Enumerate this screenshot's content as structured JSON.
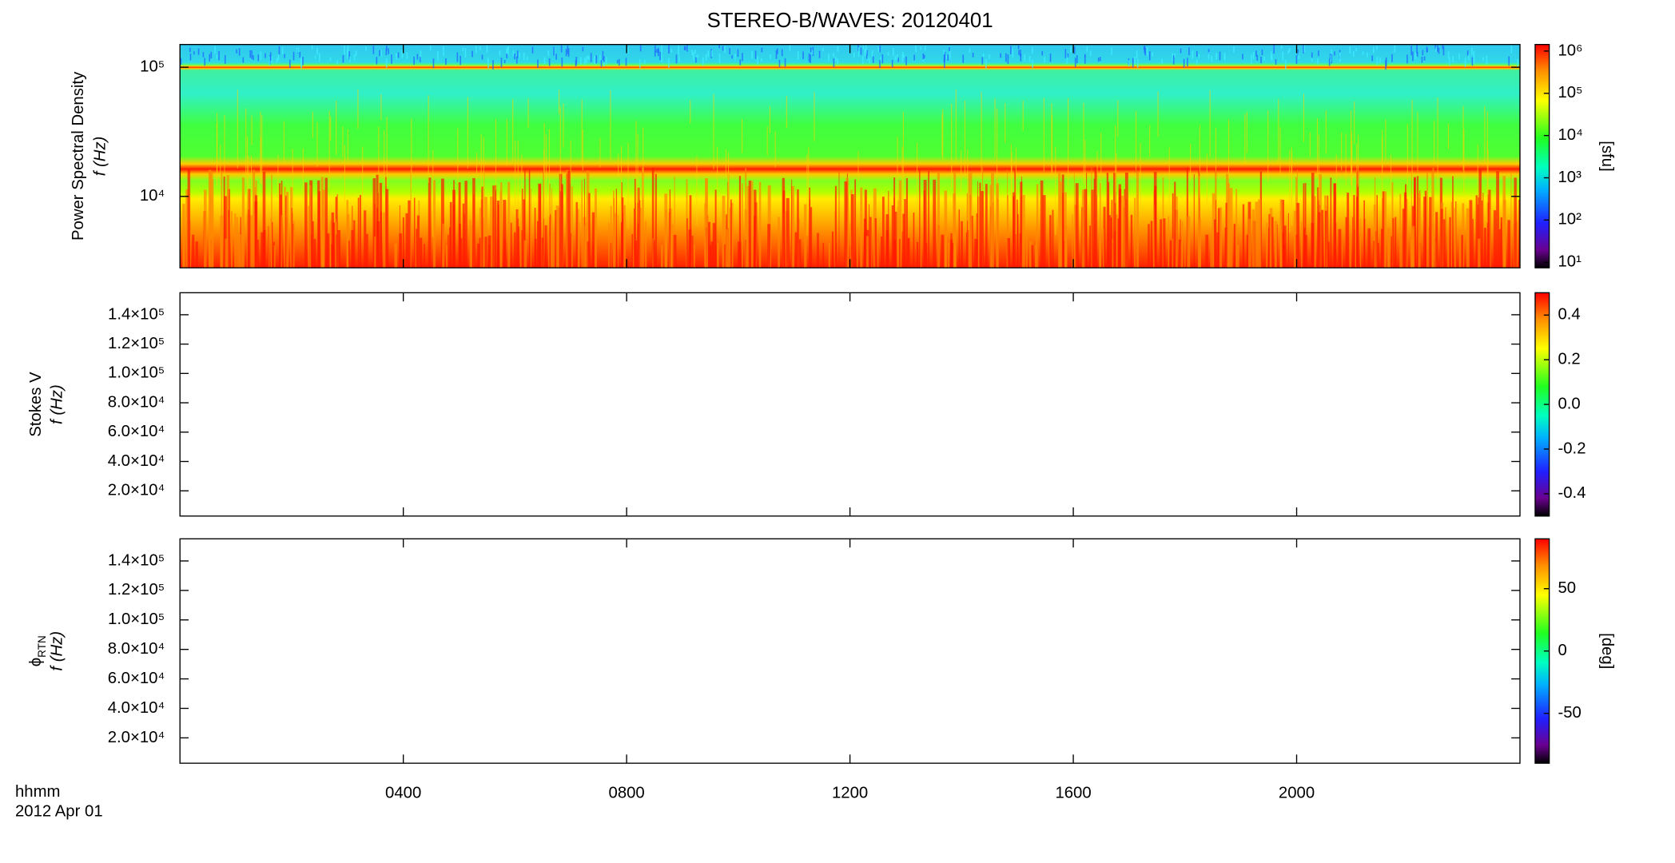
{
  "chart_data": [
    {
      "type": "spectrogram",
      "title": "STEREO-B/WAVES: 20120401",
      "ylabel": "Power Spectral Density",
      "ylabel2": "f (Hz)",
      "log_y": true,
      "xlim": [
        0,
        24
      ],
      "ylim": [
        2800,
        150000
      ],
      "yticks": [
        {
          "value": 10000,
          "label": "10⁴"
        },
        {
          "value": 100000,
          "label": "10⁵"
        }
      ],
      "colorbar": {
        "log": true,
        "lim": [
          7.4,
          1430000
        ],
        "label": "[sfu]",
        "ticks": [
          {
            "value": 10,
            "label": "10¹"
          },
          {
            "value": 100,
            "label": "10²"
          },
          {
            "value": 1000,
            "label": "10³"
          },
          {
            "value": 10000,
            "label": "10⁴"
          },
          {
            "value": 100000,
            "label": "10⁵"
          },
          {
            "value": 1000000,
            "label": "10⁶"
          }
        ]
      }
    },
    {
      "type": "spectrogram",
      "ylabel": "Stokes V",
      "ylabel2": "f (Hz)",
      "log_y": false,
      "xlim": [
        0,
        24
      ],
      "ylim": [
        2800,
        155000
      ],
      "yticks": [
        {
          "value": 20000,
          "label": "2.0×10⁴"
        },
        {
          "value": 40000,
          "label": "4.0×10⁴"
        },
        {
          "value": 60000,
          "label": "6.0×10⁴"
        },
        {
          "value": 80000,
          "label": "8.0×10⁴"
        },
        {
          "value": 100000,
          "label": "1.0×10⁵"
        },
        {
          "value": 120000,
          "label": "1.2×10⁵"
        },
        {
          "value": 140000,
          "label": "1.4×10⁵"
        }
      ],
      "colorbar": {
        "log": false,
        "lim": [
          -0.5,
          0.5
        ],
        "ticks": [
          -0.4,
          -0.2,
          {
            "value": 0,
            "label": "0.0"
          },
          0.2,
          0.4
        ]
      }
    },
    {
      "type": "spectrogram",
      "ylabel": "ϕ",
      "ylabel_sub": "RTN",
      "ylabel2": "f (Hz)",
      "log_y": false,
      "xlim": [
        0,
        24
      ],
      "ylim": [
        2800,
        155000
      ],
      "yticks": [
        {
          "value": 20000,
          "label": "2.0×10⁴"
        },
        {
          "value": 40000,
          "label": "4.0×10⁴"
        },
        {
          "value": 60000,
          "label": "6.0×10⁴"
        },
        {
          "value": 80000,
          "label": "8.0×10⁴"
        },
        {
          "value": 100000,
          "label": "1.0×10⁵"
        },
        {
          "value": 120000,
          "label": "1.2×10⁵"
        },
        {
          "value": 140000,
          "label": "1.4×10⁵"
        }
      ],
      "xticks": [
        {
          "value": 4,
          "label": "0400"
        },
        {
          "value": 8,
          "label": "0800"
        },
        {
          "value": 12,
          "label": "1200"
        },
        {
          "value": 16,
          "label": "1600"
        },
        {
          "value": 20,
          "label": "2000"
        }
      ],
      "xlabel": "hhmm",
      "date": "2012 Apr 01",
      "colorbar": {
        "log": false,
        "lim": [
          -90,
          90
        ],
        "label": "[deg]",
        "ticks": [
          -50,
          0,
          50
        ]
      }
    }
  ]
}
